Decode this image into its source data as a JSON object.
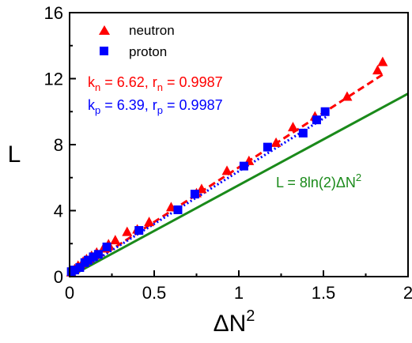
{
  "chart_data": {
    "type": "scatter",
    "xlabel": "ΔN²",
    "ylabel": "L",
    "xlim": [
      0,
      2
    ],
    "ylim": [
      0,
      16
    ],
    "x_ticks": [
      "0",
      "0.5",
      "1",
      "1.5",
      "2"
    ],
    "y_ticks": [
      "0",
      "4",
      "8",
      "12",
      "16"
    ],
    "x_tick_values": [
      0,
      0.5,
      1,
      1.5,
      2
    ],
    "y_tick_values": [
      0,
      4,
      8,
      12,
      16
    ],
    "grid": false,
    "legend_position": "top-left",
    "series": [
      {
        "name": "neutron",
        "marker": "triangle",
        "color": "#ff0000",
        "points": [
          [
            0.01,
            0.25
          ],
          [
            0.03,
            0.45
          ],
          [
            0.05,
            0.65
          ],
          [
            0.08,
            0.9
          ],
          [
            0.1,
            1.05
          ],
          [
            0.13,
            1.25
          ],
          [
            0.16,
            1.45
          ],
          [
            0.2,
            1.7
          ],
          [
            0.23,
            1.95
          ],
          [
            0.27,
            2.2
          ],
          [
            0.34,
            2.7
          ],
          [
            0.4,
            2.85
          ],
          [
            0.47,
            3.3
          ],
          [
            0.6,
            4.2
          ],
          [
            0.75,
            5.05
          ],
          [
            0.78,
            5.3
          ],
          [
            0.93,
            6.4
          ],
          [
            1.06,
            7.0
          ],
          [
            1.22,
            8.1
          ],
          [
            1.32,
            9.05
          ],
          [
            1.45,
            9.7
          ],
          [
            1.64,
            10.9
          ],
          [
            1.82,
            12.5
          ],
          [
            1.85,
            13.0
          ]
        ]
      },
      {
        "name": "proton",
        "marker": "square",
        "color": "#0000ff",
        "points": [
          [
            0.01,
            0.3
          ],
          [
            0.03,
            0.4
          ],
          [
            0.06,
            0.55
          ],
          [
            0.09,
            0.85
          ],
          [
            0.11,
            1.0
          ],
          [
            0.14,
            1.2
          ],
          [
            0.17,
            1.35
          ],
          [
            0.22,
            1.8
          ],
          [
            0.41,
            2.8
          ],
          [
            0.64,
            4.05
          ],
          [
            0.74,
            5.0
          ],
          [
            1.03,
            6.7
          ],
          [
            1.17,
            7.85
          ],
          [
            1.38,
            8.7
          ],
          [
            1.46,
            9.5
          ],
          [
            1.51,
            10.0
          ]
        ]
      }
    ],
    "fits": [
      {
        "label": "neutron fit",
        "color": "#ff0000",
        "style": "dashed",
        "slope": 6.62,
        "x_range": [
          0,
          1.86
        ]
      },
      {
        "label": "proton fit",
        "color": "#0000ff",
        "style": "dotted",
        "slope": 6.39,
        "x_range": [
          0,
          1.52
        ]
      },
      {
        "label": "L = 8ln(2)ΔN²",
        "color": "#1a8a1a",
        "style": "solid",
        "slope": 5.545,
        "x_range": [
          0,
          2
        ]
      }
    ],
    "legend": [
      {
        "label": "neutron",
        "marker": "triangle",
        "color": "#ff0000"
      },
      {
        "label": "proton",
        "marker": "square",
        "color": "#0000ff"
      }
    ],
    "annotations": {
      "neutron_fit": {
        "k_base": "k",
        "k_sub": "n",
        "k_value": " = 6.62, ",
        "r_base": "r",
        "r_sub": "n",
        "r_value": " = 0.9987",
        "color": "#ff0000"
      },
      "proton_fit": {
        "k_base": "k",
        "k_sub": "p",
        "k_value": " = 6.39, ",
        "r_base": "r",
        "r_sub": "p",
        "r_value": " = 0.9987",
        "color": "#0000ff"
      },
      "reference_line": {
        "text_main": "L = 8ln(2)ΔN",
        "text_sup": "2",
        "color": "#1a8a1a"
      }
    },
    "axis_titles": {
      "x_main": "ΔN",
      "x_sup": "2",
      "y_main": "L"
    }
  }
}
